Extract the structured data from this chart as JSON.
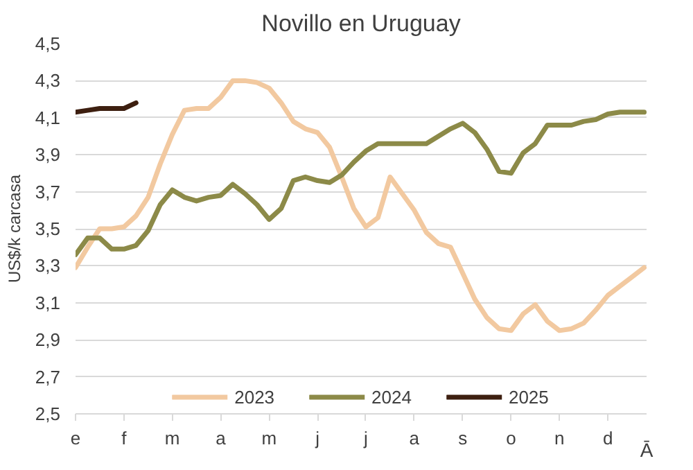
{
  "chart_data": {
    "type": "line",
    "title": "Novillo en Uruguay",
    "ylabel": "US$/k carcasa",
    "xlabel": "Ā",
    "categories": [
      "e",
      null,
      null,
      null,
      "f",
      null,
      null,
      null,
      "m",
      null,
      null,
      null,
      "a",
      null,
      null,
      null,
      "m",
      null,
      null,
      null,
      "j",
      null,
      null,
      null,
      "j",
      null,
      null,
      null,
      "a",
      null,
      null,
      null,
      "s",
      null,
      null,
      null,
      "o",
      null,
      null,
      null,
      "n",
      null,
      null,
      null,
      "d",
      null,
      null,
      null
    ],
    "ylim": [
      2.5,
      4.5
    ],
    "yticks": [
      {
        "value": 2.5,
        "label": "2,5"
      },
      {
        "value": 2.7,
        "label": "2,7"
      },
      {
        "value": 2.9,
        "label": "2,9"
      },
      {
        "value": 3.1,
        "label": "3,1"
      },
      {
        "value": 3.3,
        "label": "3,3"
      },
      {
        "value": 3.5,
        "label": "3,5"
      },
      {
        "value": 3.7,
        "label": "3,7"
      },
      {
        "value": 3.9,
        "label": "3,9"
      },
      {
        "value": 4.1,
        "label": "4,1"
      },
      {
        "value": 4.3,
        "label": "4,3"
      },
      {
        "value": 4.5,
        "label": "4,5"
      }
    ],
    "grid": "y",
    "legend": "bottom",
    "series": [
      {
        "name": "2023",
        "color": "#f2c9a0",
        "values": [
          3.29,
          3.4,
          3.5,
          3.5,
          3.51,
          3.57,
          3.67,
          3.85,
          4.01,
          4.14,
          4.15,
          4.15,
          4.21,
          4.3,
          4.3,
          4.29,
          4.26,
          4.18,
          4.08,
          4.04,
          4.02,
          3.94,
          3.78,
          3.61,
          3.51,
          3.56,
          3.78,
          3.69,
          3.6,
          3.48,
          3.42,
          3.4,
          3.26,
          3.12,
          3.02,
          2.96,
          2.95,
          3.04,
          3.09,
          3.0,
          2.95,
          2.96,
          2.99,
          3.06,
          3.14,
          3.19,
          3.24,
          3.29
        ]
      },
      {
        "name": "2024",
        "color": "#8c8a48",
        "values": [
          3.36,
          3.45,
          3.45,
          3.39,
          3.39,
          3.41,
          3.49,
          3.63,
          3.71,
          3.67,
          3.65,
          3.67,
          3.68,
          3.74,
          3.69,
          3.63,
          3.55,
          3.61,
          3.76,
          3.78,
          3.76,
          3.75,
          3.79,
          3.86,
          3.92,
          3.96,
          3.96,
          3.96,
          3.96,
          3.96,
          4.0,
          4.04,
          4.07,
          4.02,
          3.93,
          3.81,
          3.8,
          3.91,
          3.96,
          4.06,
          4.06,
          4.06,
          4.08,
          4.09,
          4.12,
          4.13,
          4.13,
          4.13
        ]
      },
      {
        "name": "2025",
        "color": "#3d1f10",
        "values": [
          4.13,
          4.14,
          4.15,
          4.15,
          4.15,
          4.18,
          null,
          null,
          null,
          null,
          null,
          null,
          null,
          null,
          null,
          null,
          null,
          null,
          null,
          null,
          null,
          null,
          null,
          null,
          null,
          null,
          null,
          null,
          null,
          null,
          null,
          null,
          null,
          null,
          null,
          null,
          null,
          null,
          null,
          null,
          null,
          null,
          null,
          null,
          null,
          null,
          null,
          null
        ]
      }
    ]
  }
}
